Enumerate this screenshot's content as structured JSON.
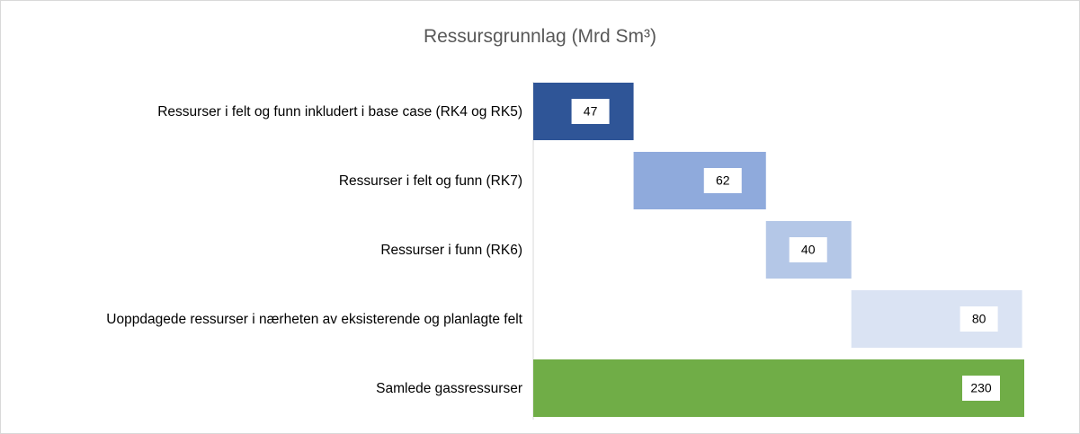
{
  "chart_data": {
    "type": "waterfall",
    "title": "Ressursgrunnlag  (Mrd Sm³)",
    "categories": [
      "Ressurser i felt og funn inkludert i base case (RK4 og RK5)",
      "Ressurser i felt og funn (RK7)",
      "Ressurser i funn (RK6)",
      "Uoppdagede ressurser i nærheten av eksisterende og planlagte felt",
      "Samlede gassressurser"
    ],
    "values": [
      47,
      62,
      40,
      80,
      230
    ],
    "colors": [
      "#2f5597",
      "#8faadc",
      "#b4c7e7",
      "#dae3f3",
      "#70ad47"
    ],
    "is_total": [
      false,
      false,
      false,
      false,
      true
    ]
  }
}
